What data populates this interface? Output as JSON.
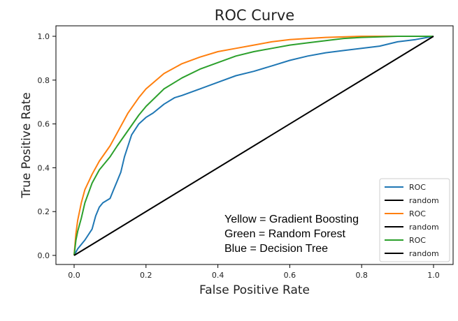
{
  "chart_data": {
    "type": "line",
    "title": "ROC Curve",
    "xlabel": "False Positive Rate",
    "ylabel": "True Positive Rate",
    "xlim": [
      0.0,
      1.0
    ],
    "ylim": [
      0.0,
      1.0
    ],
    "xticks": [
      "0.0",
      "0.2",
      "0.4",
      "0.6",
      "0.8",
      "1.0"
    ],
    "yticks": [
      "0.0",
      "0.2",
      "0.4",
      "0.6",
      "0.8",
      "1.0"
    ],
    "grid": false,
    "legend_position": "lower-right",
    "series": [
      {
        "name": "ROC",
        "color": "#1f77b4",
        "x": [
          0,
          0.01,
          0.03,
          0.05,
          0.06,
          0.07,
          0.08,
          0.1,
          0.11,
          0.12,
          0.13,
          0.14,
          0.15,
          0.16,
          0.18,
          0.2,
          0.22,
          0.25,
          0.28,
          0.3,
          0.35,
          0.4,
          0.45,
          0.5,
          0.55,
          0.6,
          0.65,
          0.7,
          0.75,
          0.8,
          0.85,
          0.9,
          0.95,
          1.0
        ],
        "y": [
          0,
          0.03,
          0.07,
          0.12,
          0.18,
          0.22,
          0.24,
          0.26,
          0.3,
          0.34,
          0.38,
          0.45,
          0.5,
          0.55,
          0.6,
          0.63,
          0.65,
          0.69,
          0.72,
          0.73,
          0.76,
          0.79,
          0.82,
          0.84,
          0.865,
          0.89,
          0.91,
          0.925,
          0.935,
          0.945,
          0.955,
          0.975,
          0.985,
          1.0
        ]
      },
      {
        "name": "random",
        "color": "#000000",
        "x": [
          0,
          1
        ],
        "y": [
          0,
          1
        ]
      },
      {
        "name": "ROC",
        "color": "#ff7f0e",
        "x": [
          0,
          0.005,
          0.01,
          0.02,
          0.03,
          0.05,
          0.07,
          0.1,
          0.12,
          0.15,
          0.18,
          0.2,
          0.25,
          0.3,
          0.35,
          0.4,
          0.45,
          0.5,
          0.55,
          0.6,
          0.65,
          0.7,
          0.8,
          0.9,
          1.0
        ],
        "y": [
          0,
          0.1,
          0.16,
          0.24,
          0.3,
          0.37,
          0.43,
          0.5,
          0.56,
          0.65,
          0.72,
          0.76,
          0.83,
          0.875,
          0.905,
          0.93,
          0.945,
          0.96,
          0.975,
          0.985,
          0.99,
          0.995,
          1.0,
          1.0,
          1.0
        ]
      },
      {
        "name": "random",
        "color": "#000000",
        "x": [
          0,
          1
        ],
        "y": [
          0,
          1
        ]
      },
      {
        "name": "ROC",
        "color": "#2ca02c",
        "x": [
          0,
          0.005,
          0.01,
          0.02,
          0.03,
          0.05,
          0.07,
          0.1,
          0.12,
          0.15,
          0.18,
          0.2,
          0.25,
          0.3,
          0.35,
          0.4,
          0.45,
          0.5,
          0.55,
          0.6,
          0.65,
          0.7,
          0.75,
          0.8,
          0.9,
          1.0
        ],
        "y": [
          0,
          0.07,
          0.11,
          0.17,
          0.24,
          0.33,
          0.39,
          0.45,
          0.5,
          0.57,
          0.64,
          0.68,
          0.76,
          0.81,
          0.85,
          0.88,
          0.91,
          0.93,
          0.945,
          0.96,
          0.97,
          0.98,
          0.99,
          0.995,
          1.0,
          1.0
        ]
      },
      {
        "name": "random",
        "color": "#000000",
        "x": [
          0,
          1
        ],
        "y": [
          0,
          1
        ]
      }
    ],
    "annotations": [
      "Yellow = Gradient Boosting",
      "Green = Random Forest",
      "Blue = Decision Tree"
    ]
  }
}
